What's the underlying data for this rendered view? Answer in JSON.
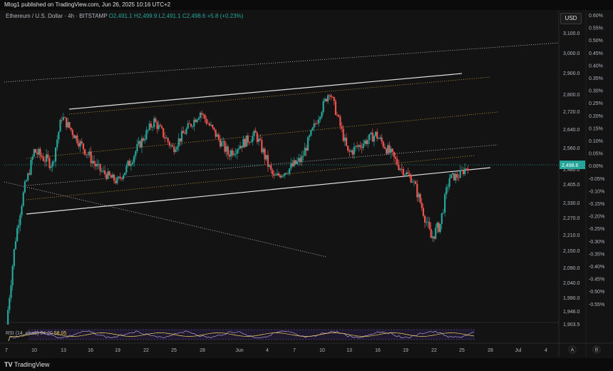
{
  "header": {
    "publisher": "Mlog1 published on TradingView.com, Jun 26, 2025 10:16 UTC+2"
  },
  "legend": {
    "symbol": "Ethereum / U.S. Dollar · 4h · BITSTAMP",
    "o": "O2,491.1",
    "h": "H2,499.9",
    "l": "L2,491.1",
    "c": "C2,498.6",
    "chg": "+5.8 (+0.23%)"
  },
  "currency_button": "USD",
  "footer": {
    "brand": "TradingView"
  },
  "rsi": {
    "label": "RSI (14, close)",
    "v1": "64.20",
    "v2": "58.05"
  },
  "colors": {
    "up": "#26a69a",
    "down": "#ef5350",
    "channel": "#e0e0e0",
    "mid": "#c8a23a",
    "price_tag": "#26a69a"
  },
  "chart_data": {
    "type": "candlestick",
    "title": "",
    "x_ticks": [
      "7",
      "10",
      "13",
      "16",
      "19",
      "22",
      "25",
      "28",
      "Jun",
      "4",
      "7",
      "10",
      "13",
      "16",
      "19",
      "22",
      "25",
      "28",
      "Jul",
      "4"
    ],
    "y_ticks_price": [
      "3,100.0",
      "3,000.0",
      "2,900.0",
      "2,800.0",
      "2,720.0",
      "2,640.0",
      "2,560.0",
      "2,480.0",
      "2,405.0",
      "2,330.0",
      "2,270.0",
      "2,210.0",
      "2,150.0",
      "2,090.0",
      "2,040.0",
      "1,990.0",
      "1,946.0",
      "1,903.5"
    ],
    "y_ticks_pct": [
      "0.60%",
      "0.55%",
      "0.50%",
      "0.45%",
      "0.40%",
      "0.35%",
      "0.30%",
      "0.25%",
      "0.20%",
      "0.15%",
      "0.10%",
      "0.05%",
      "0.00%",
      "-0.05%",
      "-0.10%",
      "-0.15%",
      "-0.20%",
      "-0.25%",
      "-0.30%",
      "-0.35%",
      "-0.40%",
      "-0.45%",
      "-0.50%",
      "-0.55%"
    ],
    "last_price": "2,498.6",
    "y_extra_labels": [
      "A",
      "B"
    ],
    "approx_close_path": [
      {
        "x": "May 7",
        "y": 1903.5
      },
      {
        "x": "May 8",
        "y": 2200
      },
      {
        "x": "May 9",
        "y": 2400
      },
      {
        "x": "May 10",
        "y": 2550
      },
      {
        "x": "May 12",
        "y": 2500
      },
      {
        "x": "May 13",
        "y": 2700
      },
      {
        "x": "May 15",
        "y": 2580
      },
      {
        "x": "May 17",
        "y": 2480
      },
      {
        "x": "May 19",
        "y": 2420
      },
      {
        "x": "May 21",
        "y": 2550
      },
      {
        "x": "May 23",
        "y": 2680
      },
      {
        "x": "May 25",
        "y": 2560
      },
      {
        "x": "May 28",
        "y": 2720
      },
      {
        "x": "May 31",
        "y": 2540
      },
      {
        "x": "Jun 3",
        "y": 2620
      },
      {
        "x": "Jun 5",
        "y": 2440
      },
      {
        "x": "Jun 8",
        "y": 2520
      },
      {
        "x": "Jun 11",
        "y": 2820
      },
      {
        "x": "Jun 13",
        "y": 2540
      },
      {
        "x": "Jun 16",
        "y": 2620
      },
      {
        "x": "Jun 18",
        "y": 2520
      },
      {
        "x": "Jun 20",
        "y": 2430
      },
      {
        "x": "Jun 22",
        "y": 2200
      },
      {
        "x": "Jun 23",
        "y": 2250
      },
      {
        "x": "Jun 24",
        "y": 2440
      },
      {
        "x": "Jun 25",
        "y": 2450
      },
      {
        "x": "Jun 26",
        "y": 2498.6
      }
    ]
  }
}
